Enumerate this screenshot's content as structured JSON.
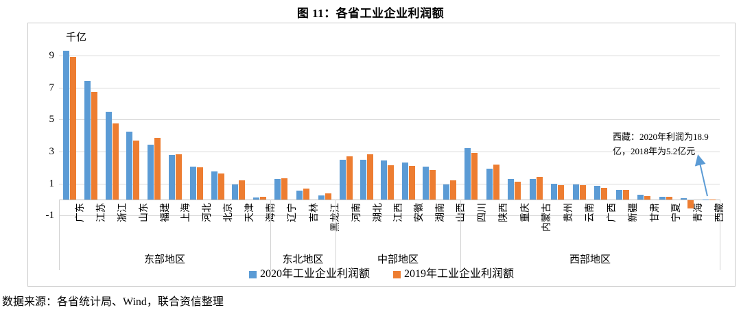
{
  "title": "图 11：各省工业企业利润额",
  "source": "数据来源：各省统计局、Wind，联合资信整理",
  "chart_data": {
    "type": "bar",
    "title": "图 11：各省工业企业利润额",
    "unit_label": "千亿",
    "ylabel": "千亿",
    "y_ticks": [
      9,
      7,
      5,
      3,
      1,
      -1
    ],
    "ylim": [
      -1.4,
      9.8
    ],
    "grid": "horizontal, interval 2",
    "legend_position": "bottom",
    "series_names": [
      "2020年工业企业利润额",
      "2019年工业企业利润额"
    ],
    "series_colors": [
      "#5B9BD5",
      "#ED7D31"
    ],
    "groups": [
      {
        "region": "东部地区",
        "categories": [
          "广东",
          "江苏",
          "浙江",
          "山东",
          "福建",
          "上海",
          "河北",
          "北京",
          "天津",
          "海南"
        ],
        "series": [
          {
            "name": "2020年工业企业利润额",
            "values": [
              9.3,
              7.4,
              5.5,
              4.25,
              3.45,
              2.8,
              2.05,
              1.75,
              0.95,
              0.12
            ]
          },
          {
            "name": "2019年工业企业利润额",
            "values": [
              8.9,
              6.75,
              4.75,
              3.7,
              3.85,
              2.85,
              2.0,
              1.65,
              1.2,
              0.17
            ]
          }
        ]
      },
      {
        "region": "东北地区",
        "categories": [
          "辽宁",
          "吉林",
          "黑龙江"
        ],
        "series": [
          {
            "name": "2020年工业企业利润额",
            "values": [
              1.3,
              0.55,
              0.25
            ]
          },
          {
            "name": "2019年工业企业利润额",
            "values": [
              1.35,
              0.7,
              0.4
            ]
          }
        ]
      },
      {
        "region": "中部地区",
        "categories": [
          "河南",
          "湖北",
          "江西",
          "安徽",
          "湖南",
          "山西"
        ],
        "series": [
          {
            "name": "2020年工业企业利润额",
            "values": [
              2.5,
              2.5,
              2.45,
              2.3,
              2.05,
              0.95
            ]
          },
          {
            "name": "2019年工业企业利润额",
            "values": [
              2.7,
              2.85,
              2.15,
              2.1,
              1.85,
              1.2
            ]
          }
        ]
      },
      {
        "region": "西部地区",
        "categories": [
          "四川",
          "陕西",
          "重庆",
          "内蒙古",
          "贵州",
          "云南",
          "广西",
          "新疆",
          "甘肃",
          "宁夏",
          "青海",
          "西藏"
        ],
        "series": [
          {
            "name": "2020年工业企业利润额",
            "values": [
              3.2,
              1.95,
              1.3,
              1.3,
              1.0,
              0.95,
              0.85,
              0.6,
              0.28,
              0.17,
              0.07,
              0.02
            ]
          },
          {
            "name": "2019年工业企业利润额",
            "values": [
              2.9,
              2.2,
              1.1,
              1.4,
              0.9,
              0.9,
              0.75,
              0.6,
              0.22,
              0.18,
              -0.5,
              0.01
            ]
          }
        ]
      }
    ],
    "annotation": {
      "text": "西藏：2020年利润为18.9亿，2018年为5.2亿元",
      "lines": [
        "西藏：2020年利润为18.9",
        "亿，2018年为5.2亿元"
      ],
      "arrow_color": "#5B9BD5"
    }
  }
}
